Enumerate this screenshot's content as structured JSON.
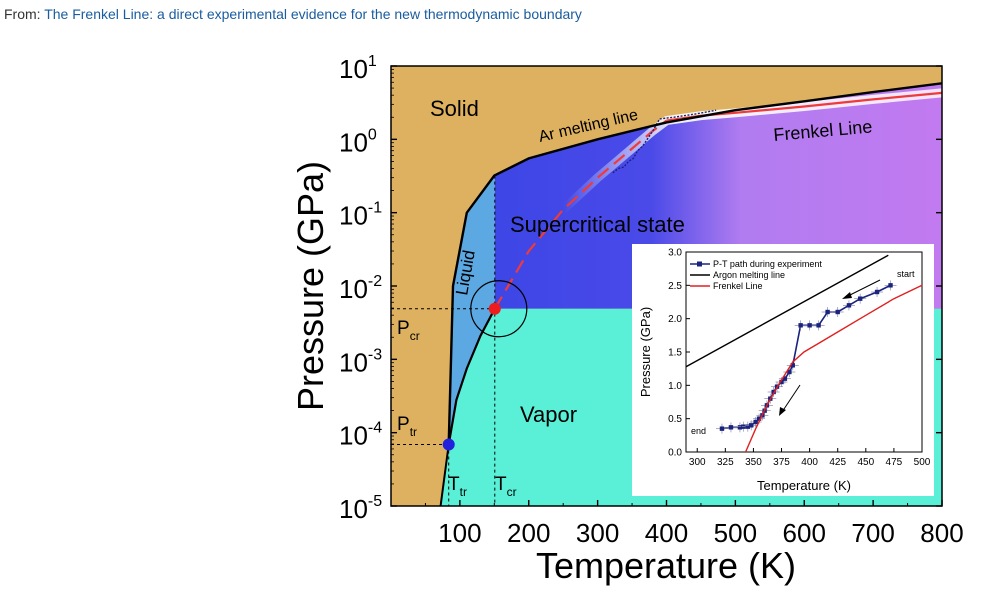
{
  "header": {
    "from_label": "From:",
    "article_link": "The Frenkel Line: a direct experimental evidence for the new thermodynamic boundary"
  },
  "chart_data": [
    {
      "type": "phase-diagram",
      "xlabel": "Temperature (K)",
      "ylabel": "Pressure (GPa)",
      "xlim": [
        0,
        800
      ],
      "ylim_log10": [
        -5,
        1
      ],
      "x_ticks": [
        100,
        200,
        300,
        400,
        500,
        600,
        700,
        800
      ],
      "x_tick_labels": [
        "100",
        "200",
        "300",
        "400",
        "500",
        "600",
        "700",
        "800"
      ],
      "y_tick_exponents": [
        1,
        0,
        -1,
        -2,
        -3,
        -4,
        -5
      ],
      "y_tick_labels": [
        "1",
        "0",
        "-1",
        "-2",
        "-3",
        "-4",
        "-5"
      ],
      "y_tick_base": "10",
      "regions": {
        "solid": "Solid",
        "liquid": "Liquid",
        "supercritical": "Supercritical state",
        "vapor": "Vapor"
      },
      "lines": {
        "melting": "Ar melting line",
        "frenkel": "Frenkel Line"
      },
      "points": {
        "critical": {
          "T": 150.7,
          "P": 0.0049
        },
        "triple": {
          "T": 83.8,
          "P": 6.9e-05
        }
      },
      "annotations": {
        "p_cr": {
          "main": "P",
          "sub": "cr"
        },
        "p_tr": {
          "main": "P",
          "sub": "tr"
        },
        "t_tr": {
          "main": "T",
          "sub": "tr"
        },
        "t_cr": {
          "main": "T",
          "sub": "cr"
        }
      },
      "melting_line": [
        [
          83.8,
          6.9e-05
        ],
        [
          90,
          0.01
        ],
        [
          110,
          0.1
        ],
        [
          150,
          0.32
        ],
        [
          200,
          0.55
        ],
        [
          300,
          1.0
        ],
        [
          400,
          1.7
        ],
        [
          500,
          2.5
        ],
        [
          600,
          3.3
        ],
        [
          700,
          4.4
        ],
        [
          800,
          5.8
        ]
      ],
      "frenkel_line": [
        [
          150.7,
          0.0049
        ],
        [
          200,
          0.03
        ],
        [
          250,
          0.11
        ],
        [
          300,
          0.3
        ],
        [
          350,
          0.75
        ],
        [
          380,
          1.3
        ],
        [
          400,
          1.8
        ],
        [
          450,
          2.1
        ],
        [
          500,
          2.3
        ],
        [
          600,
          2.8
        ],
        [
          700,
          3.5
        ],
        [
          800,
          4.3
        ]
      ],
      "colors": {
        "solid": "#deb160",
        "liquid": "#5ba8e3",
        "super_blue": "#3d46e6",
        "super_purple": "#c27af0",
        "vapor": "#5af0d8",
        "frenkel": "#f03a3a",
        "critical_point": "#ee1c1c",
        "triple_point": "#2222dd",
        "path": "#1a237e"
      }
    },
    {
      "type": "line",
      "xlabel": "Temperature (K)",
      "ylabel": "Pressure (GPa)",
      "xlim": [
        290,
        500
      ],
      "ylim": [
        0,
        3.0
      ],
      "x_ticks": [
        300,
        325,
        350,
        375,
        400,
        425,
        450,
        475,
        500
      ],
      "x_tick_labels": [
        "300",
        "325",
        "350",
        "375",
        "400",
        "425",
        "450",
        "475",
        "500"
      ],
      "y_ticks": [
        0.0,
        0.5,
        1.0,
        1.5,
        2.0,
        2.5,
        3.0
      ],
      "y_tick_labels": [
        "0.0",
        "0.5",
        "1.0",
        "1.5",
        "2.0",
        "2.5",
        "3.0"
      ],
      "legend": [
        "P-T path during experiment",
        "Argon melting line",
        "Frenkel Line"
      ],
      "annotation_start": "start",
      "annotation_end": "end",
      "series": [
        {
          "name": "P-T path during experiment",
          "x": [
            322,
            330,
            338,
            341,
            345,
            348,
            352,
            355,
            358,
            360,
            362,
            365,
            368,
            371,
            375,
            378,
            382,
            385,
            392,
            400,
            408,
            416,
            425,
            435,
            445,
            460,
            472
          ],
          "y": [
            0.35,
            0.37,
            0.37,
            0.38,
            0.38,
            0.4,
            0.45,
            0.5,
            0.55,
            0.62,
            0.7,
            0.8,
            0.9,
            0.98,
            1.05,
            1.1,
            1.2,
            1.3,
            1.9,
            1.9,
            1.9,
            2.1,
            2.1,
            2.2,
            2.3,
            2.4,
            2.5
          ]
        },
        {
          "name": "Argon melting line",
          "x": [
            290,
            470
          ],
          "y": [
            1.28,
            2.95
          ]
        },
        {
          "name": "Frenkel Line",
          "x": [
            343,
            352,
            362,
            372,
            385,
            395,
            410,
            425,
            450,
            475,
            500
          ],
          "y": [
            0.0,
            0.35,
            0.7,
            1.0,
            1.35,
            1.5,
            1.65,
            1.8,
            2.05,
            2.3,
            2.5
          ]
        }
      ]
    }
  ]
}
